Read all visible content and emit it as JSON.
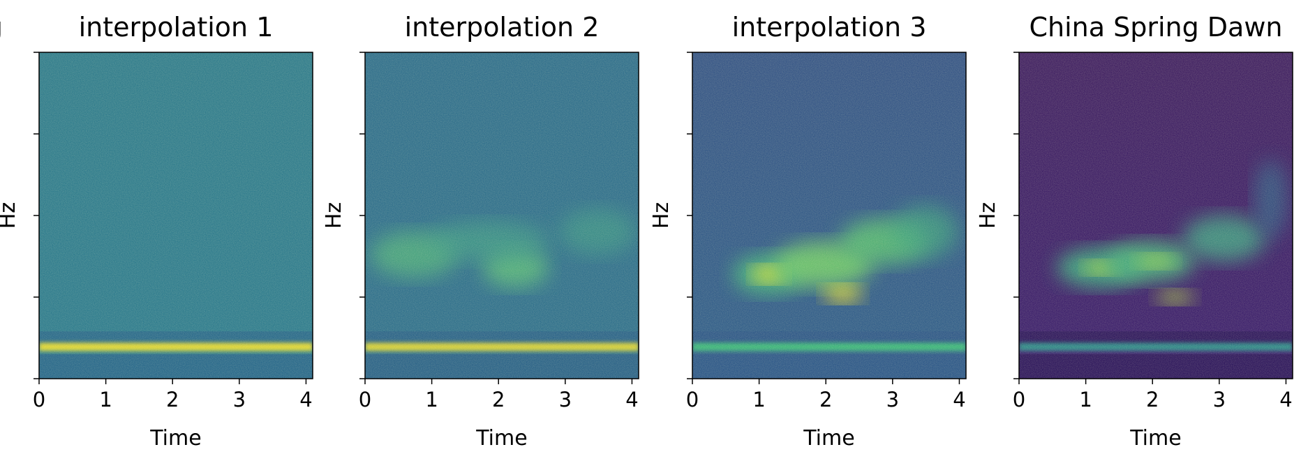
{
  "figure": {
    "colormap": "viridis",
    "colors": {
      "viridis_dark": "#440154",
      "viridis_blue": "#31688e",
      "viridis_teal": "#21918c",
      "viridis_green": "#35b779",
      "viridis_yellow": "#fde725",
      "axis": "#000000"
    }
  },
  "chart_data": [
    {
      "type": "heatmap",
      "title": "g",
      "xlabel": "",
      "ylabel": "",
      "x_ticks": [],
      "xlim": [
        0,
        4.1
      ],
      "partial": true,
      "intensity": "high"
    },
    {
      "type": "heatmap",
      "title": "interpolation 1",
      "xlabel": "Time",
      "ylabel": "Hz",
      "x_ticks": [
        "0",
        "1",
        "2",
        "3",
        "4"
      ],
      "xlim": [
        0,
        4.1
      ],
      "y_tick_count": 5,
      "intensity": "low"
    },
    {
      "type": "heatmap",
      "title": "interpolation 2",
      "xlabel": "Time",
      "ylabel": "Hz",
      "x_ticks": [
        "0",
        "1",
        "2",
        "3",
        "4"
      ],
      "xlim": [
        0,
        4.1
      ],
      "y_tick_count": 5,
      "intensity": "medium"
    },
    {
      "type": "heatmap",
      "title": "interpolation 3",
      "xlabel": "Time",
      "ylabel": "Hz",
      "x_ticks": [
        "0",
        "1",
        "2",
        "3",
        "4"
      ],
      "xlim": [
        0,
        4.1
      ],
      "y_tick_count": 5,
      "intensity": "high"
    },
    {
      "type": "heatmap",
      "title": "China Spring Dawn",
      "xlabel": "Time",
      "ylabel": "Hz",
      "x_ticks": [
        "0",
        "1",
        "2",
        "3",
        "4"
      ],
      "xlim": [
        0,
        4.1
      ],
      "y_tick_count": 5,
      "intensity": "target"
    }
  ]
}
